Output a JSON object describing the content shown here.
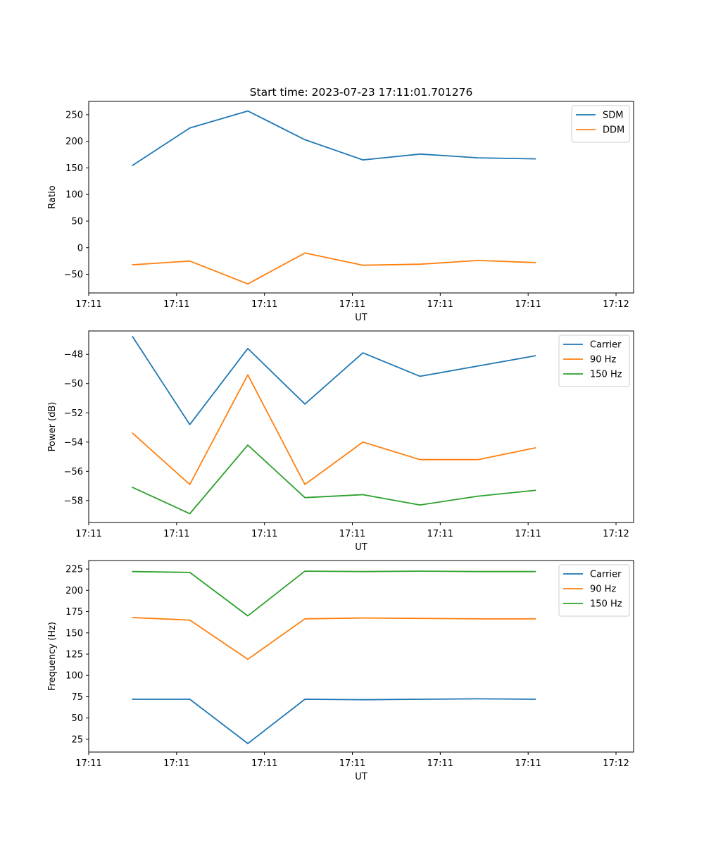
{
  "chart_data": [
    {
      "type": "line",
      "title": "Start time: 2023-07-23 17:11:01.701276",
      "xlabel": "UT",
      "ylabel": "Ratio",
      "xlim": [
        0,
        6.2
      ],
      "ylim": [
        -85,
        275
      ],
      "x_ticks": [
        0.0,
        1.0,
        2.0,
        3.0,
        4.0,
        5.0,
        6.0
      ],
      "x_tick_labels": [
        "17:11",
        "17:11",
        "17:11",
        "17:11",
        "17:11",
        "17:11",
        "17:12"
      ],
      "y_ticks": [
        -50,
        0,
        50,
        100,
        150,
        200,
        250
      ],
      "y_tick_labels": [
        "−50",
        "0",
        "50",
        "100",
        "150",
        "200",
        "250"
      ],
      "x": [
        0.5,
        1.15,
        1.81,
        2.46,
        3.12,
        3.77,
        4.43,
        5.08
      ],
      "legend_position": "top-right",
      "series": [
        {
          "name": "SDM",
          "color": "#1f77b4",
          "values": [
            155,
            225,
            257,
            203,
            165,
            176,
            169,
            167
          ]
        },
        {
          "name": "DDM",
          "color": "#ff7f0e",
          "values": [
            -32,
            -25,
            -68,
            -10,
            -33,
            -31,
            -24,
            -28
          ]
        }
      ]
    },
    {
      "type": "line",
      "title": "",
      "xlabel": "UT",
      "ylabel": "Power (dB)",
      "xlim": [
        0,
        6.2
      ],
      "ylim": [
        -59.5,
        -46.4
      ],
      "x_ticks": [
        0.0,
        1.0,
        2.0,
        3.0,
        4.0,
        5.0,
        6.0
      ],
      "x_tick_labels": [
        "17:11",
        "17:11",
        "17:11",
        "17:11",
        "17:11",
        "17:11",
        "17:12"
      ],
      "y_ticks": [
        -58,
        -56,
        -54,
        -52,
        -50,
        -48
      ],
      "y_tick_labels": [
        "−58",
        "−56",
        "−54",
        "−52",
        "−50",
        "−48"
      ],
      "x": [
        0.5,
        1.15,
        1.81,
        2.46,
        3.12,
        3.77,
        4.43,
        5.08
      ],
      "legend_position": "top-right",
      "series": [
        {
          "name": "Carrier",
          "color": "#1f77b4",
          "values": [
            -46.8,
            -52.8,
            -47.6,
            -51.4,
            -47.9,
            -49.5,
            -48.8,
            -48.1
          ]
        },
        {
          "name": "90 Hz",
          "color": "#ff7f0e",
          "values": [
            -53.4,
            -56.9,
            -49.4,
            -56.9,
            -54.0,
            -55.2,
            -55.2,
            -54.4
          ]
        },
        {
          "name": "150 Hz",
          "color": "#2ca02c",
          "values": [
            -57.1,
            -58.9,
            -54.2,
            -57.8,
            -57.6,
            -58.3,
            -57.7,
            -57.3
          ]
        }
      ]
    },
    {
      "type": "line",
      "title": "",
      "xlabel": "UT",
      "ylabel": "Frequency (Hz)",
      "xlim": [
        0,
        6.2
      ],
      "ylim": [
        10,
        235
      ],
      "x_ticks": [
        0.0,
        1.0,
        2.0,
        3.0,
        4.0,
        5.0,
        6.0
      ],
      "x_tick_labels": [
        "17:11",
        "17:11",
        "17:11",
        "17:11",
        "17:11",
        "17:11",
        "17:12"
      ],
      "y_ticks": [
        25,
        50,
        75,
        100,
        125,
        150,
        175,
        200,
        225
      ],
      "y_tick_labels": [
        "25",
        "50",
        "75",
        "100",
        "125",
        "150",
        "175",
        "200",
        "225"
      ],
      "x": [
        0.5,
        1.15,
        1.81,
        2.46,
        3.12,
        3.77,
        4.43,
        5.08
      ],
      "legend_position": "top-right",
      "series": [
        {
          "name": "Carrier",
          "color": "#1f77b4",
          "values": [
            72,
            72,
            20,
            72,
            71.5,
            72,
            72.5,
            72
          ]
        },
        {
          "name": "90 Hz",
          "color": "#ff7f0e",
          "values": [
            168,
            165,
            119,
            166.5,
            167.5,
            167,
            166.5,
            166.5
          ]
        },
        {
          "name": "150 Hz",
          "color": "#2ca02c",
          "values": [
            222,
            221,
            170,
            222.5,
            222,
            222.5,
            222,
            222
          ]
        }
      ]
    }
  ]
}
